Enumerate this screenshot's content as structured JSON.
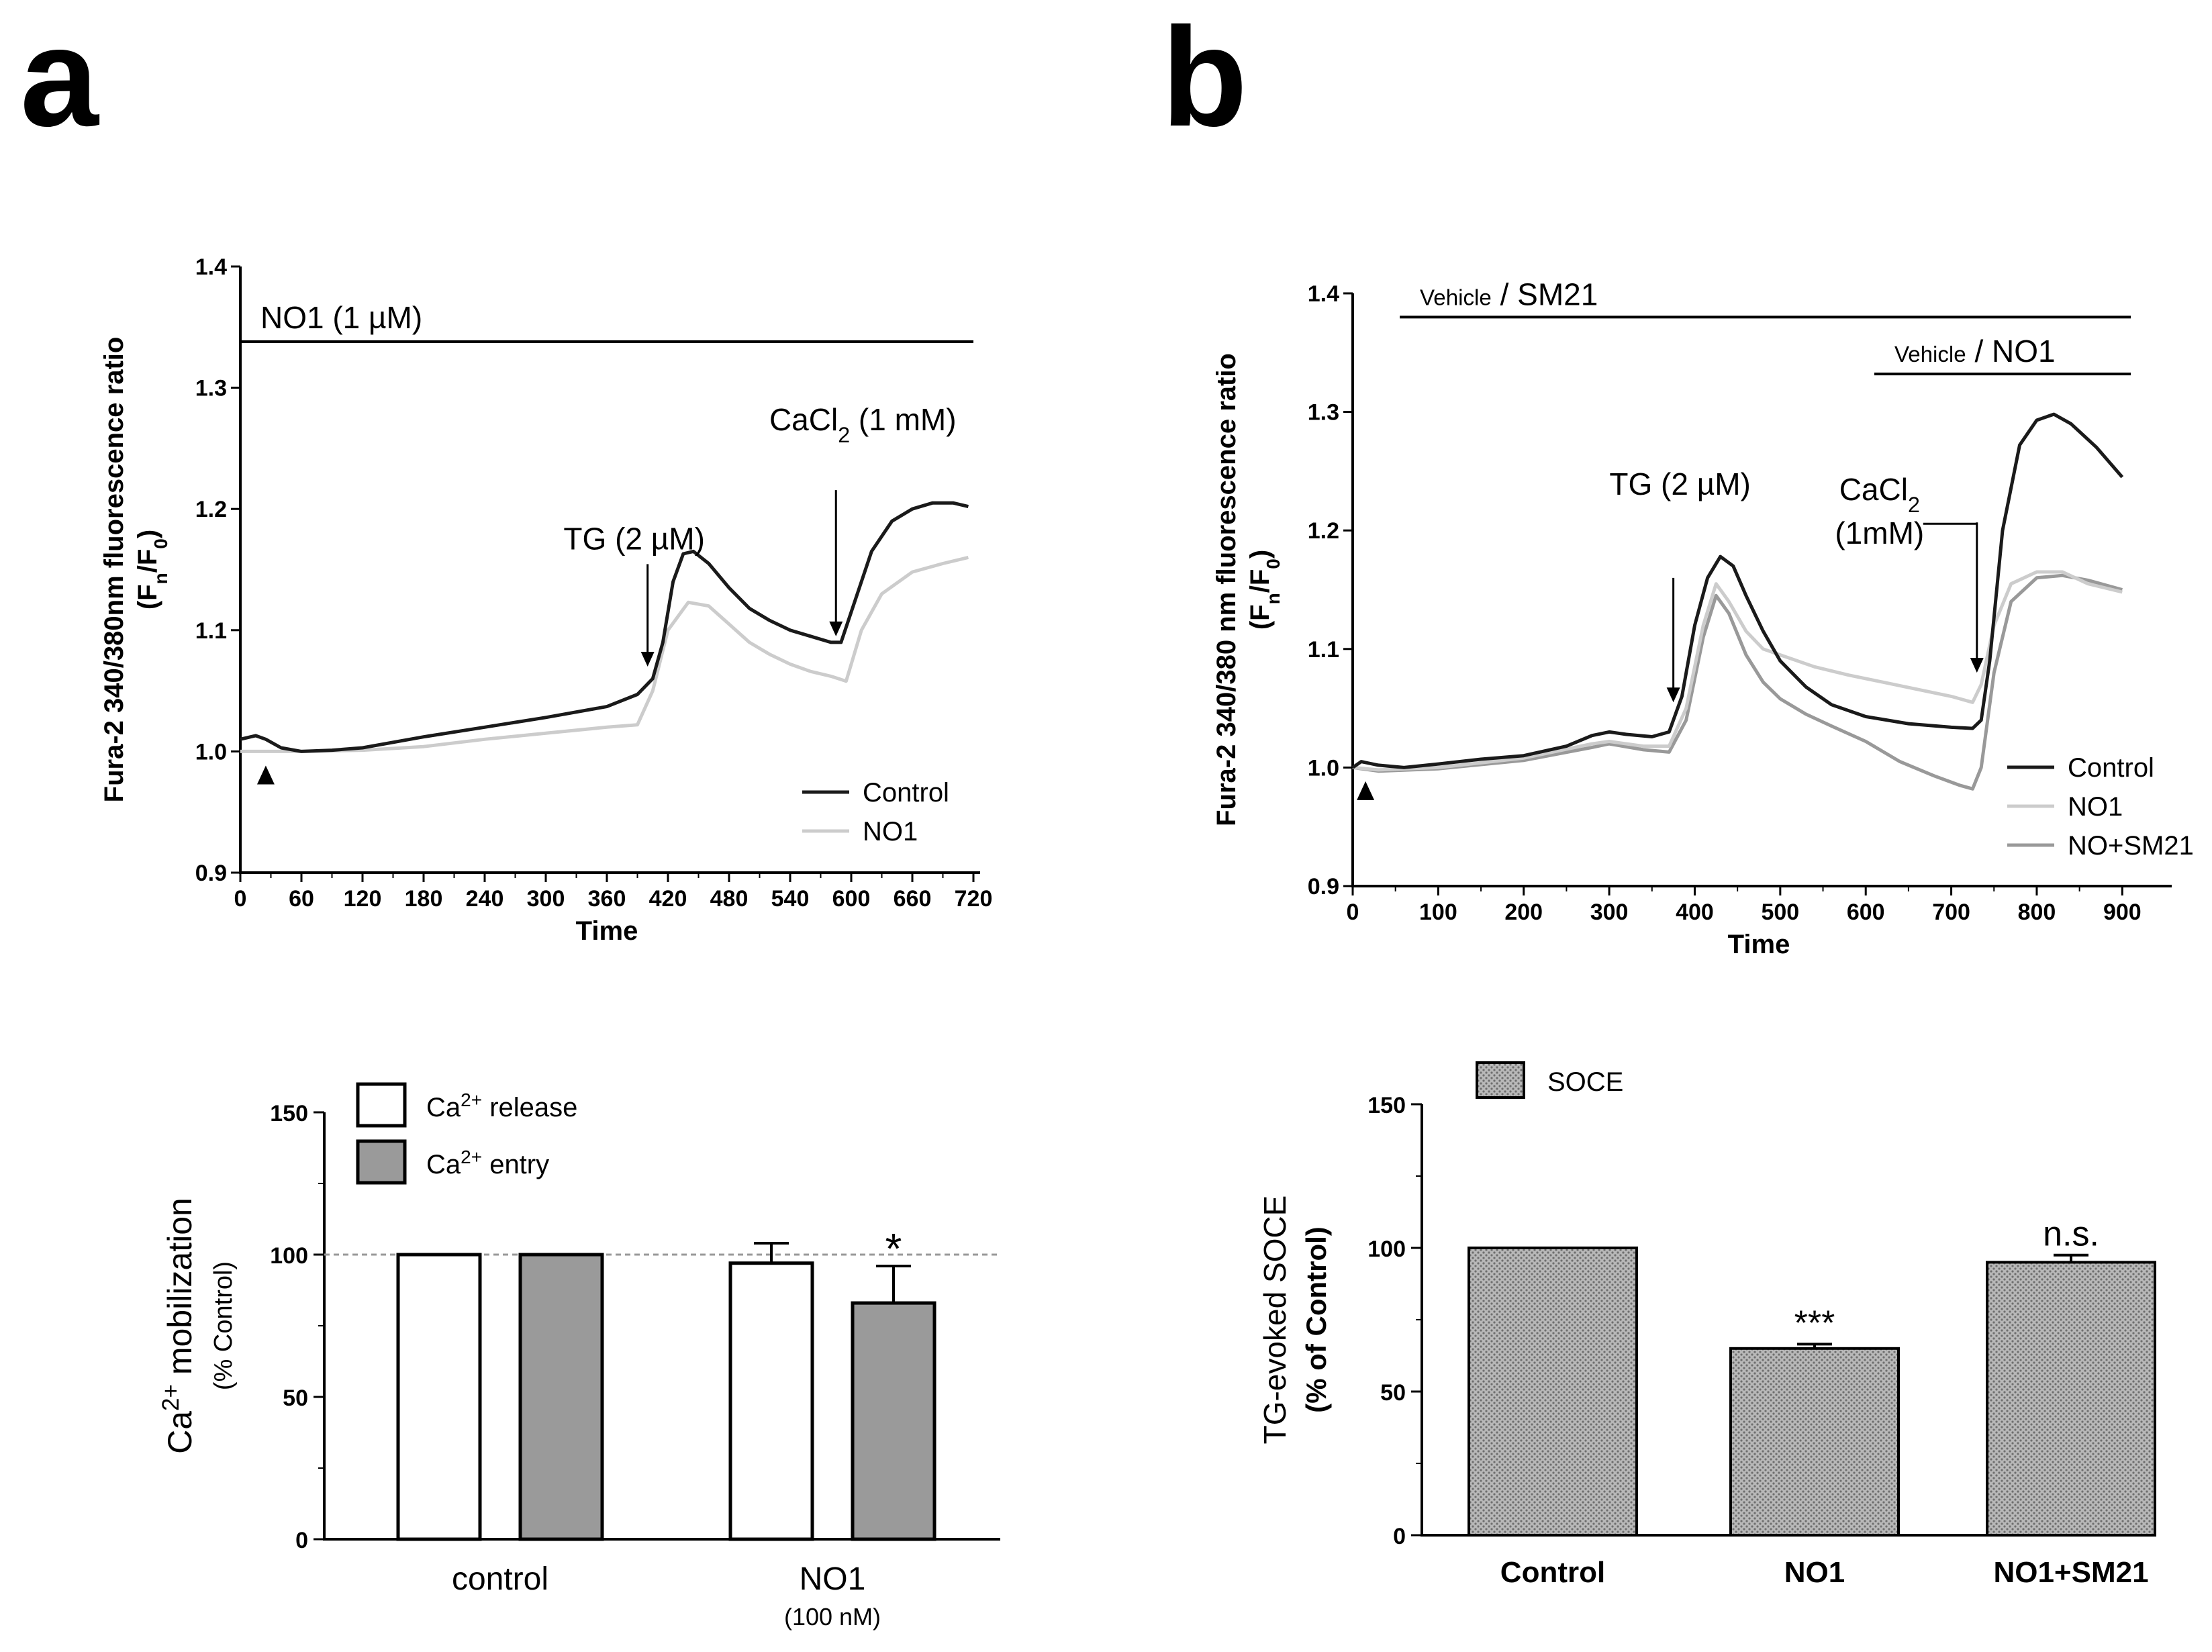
{
  "panels": {
    "a": {
      "letter": "a"
    },
    "b": {
      "letter": "b"
    }
  },
  "colors": {
    "control": "#1a1a1a",
    "no1": "#cccccc",
    "no_sm21": "#999999",
    "entry_fill": "#9a9a9a",
    "soce_fill": "#b8b8b8"
  },
  "chart_data": [
    {
      "id": "a-top",
      "type": "line",
      "xlabel": "Time",
      "ylabel_line1": "Fura-2  340/380nm fluorescence ratio",
      "ylabel_line2": "(F",
      "ylabel_sub1": "n",
      "ylabel_mid": "/F",
      "ylabel_sub2": "0",
      "ylabel_end": ")",
      "xlim": [
        0,
        720
      ],
      "ylim": [
        0.9,
        1.4
      ],
      "xticks": [
        "0",
        "60",
        "120",
        "180",
        "240",
        "300",
        "360",
        "420",
        "480",
        "540",
        "600",
        "660",
        "720"
      ],
      "yticks": [
        "0.9",
        "1.0",
        "1.1",
        "1.2",
        "1.3",
        "1.4"
      ],
      "treatment_bar": {
        "label": "NO1 (1 µM)",
        "x_start": 0,
        "x_end": 720,
        "y": 1.338
      },
      "annotations": [
        {
          "label": "TG (2 µM)",
          "x": 400,
          "y_from": 1.17,
          "y_to": 1.07
        },
        {
          "label": "CaCl",
          "sub": "2",
          "tail": " (1 mM)",
          "x": 585,
          "y_from": 1.21,
          "y_to": 1.095
        }
      ],
      "stim_marker_x": 25,
      "series": [
        {
          "name": "Control",
          "x": [
            0,
            15,
            25,
            40,
            60,
            90,
            120,
            180,
            240,
            300,
            360,
            390,
            405,
            415,
            425,
            435,
            445,
            460,
            480,
            500,
            520,
            540,
            560,
            580,
            590,
            600,
            620,
            640,
            660,
            680,
            700,
            715
          ],
          "y": [
            1.01,
            1.013,
            1.01,
            1.003,
            1.0,
            1.001,
            1.003,
            1.012,
            1.02,
            1.028,
            1.037,
            1.047,
            1.06,
            1.09,
            1.14,
            1.163,
            1.165,
            1.155,
            1.135,
            1.118,
            1.108,
            1.1,
            1.095,
            1.09,
            1.09,
            1.115,
            1.165,
            1.19,
            1.2,
            1.205,
            1.205,
            1.202
          ]
        },
        {
          "name": "NO1",
          "x": [
            0,
            30,
            60,
            120,
            180,
            240,
            300,
            360,
            390,
            405,
            420,
            440,
            460,
            480,
            500,
            520,
            540,
            560,
            580,
            595,
            610,
            630,
            660,
            690,
            715
          ],
          "y": [
            1.0,
            1.0,
            1.0,
            1.001,
            1.004,
            1.01,
            1.015,
            1.02,
            1.022,
            1.05,
            1.1,
            1.123,
            1.12,
            1.105,
            1.09,
            1.08,
            1.072,
            1.066,
            1.062,
            1.058,
            1.1,
            1.13,
            1.148,
            1.155,
            1.16
          ]
        }
      ]
    },
    {
      "id": "a-bottom",
      "type": "bar",
      "ylabel_main": "Ca",
      "ylabel_sup": "2+",
      "ylabel_rest": " mobilization",
      "ylabel_line2": "(% Control)",
      "ylim": [
        0,
        150
      ],
      "yticks": [
        "0",
        "50",
        "100",
        "150"
      ],
      "reference_line": 100,
      "categories": [
        "control",
        "NO1"
      ],
      "category_sub": [
        "",
        "(100 nM)"
      ],
      "series": [
        {
          "name": "release",
          "legend_prefix": "Ca",
          "legend_sup": "2+",
          "legend_suffix": " release",
          "values": [
            100,
            97
          ],
          "errors": [
            0,
            7
          ]
        },
        {
          "name": "entry",
          "legend_prefix": "Ca",
          "legend_sup": "2+",
          "legend_suffix": " entry",
          "values": [
            100,
            83
          ],
          "errors": [
            0,
            13
          ]
        }
      ],
      "significance": [
        {
          "category": 1,
          "series": 1,
          "label": "*"
        }
      ]
    },
    {
      "id": "b-top",
      "type": "line",
      "xlabel": "Time",
      "ylabel_line1": "Fura-2  340/380 nm fluorescence ratio",
      "ylabel_line2": "(F",
      "ylabel_sub1": "n",
      "ylabel_mid": "/F",
      "ylabel_sub2": "0",
      "ylabel_end": ")",
      "xlim": [
        0,
        950
      ],
      "ylim": [
        0.9,
        1.4
      ],
      "xticks": [
        "0",
        "100",
        "200",
        "300",
        "400",
        "500",
        "600",
        "700",
        "800",
        "900"
      ],
      "yticks": [
        "0.9",
        "1.0",
        "1.1",
        "1.2",
        "1.3",
        "1.4"
      ],
      "treatment_bars": [
        {
          "small": "Vehicle",
          "label": " / SM21",
          "x_start": 55,
          "x_end": 910,
          "y": 1.38
        },
        {
          "small": "Vehicle",
          "label": " / NO1",
          "x_start": 610,
          "x_end": 910,
          "y": 1.332
        }
      ],
      "annotations": [
        {
          "label": "TG (2 µM)",
          "x": 375,
          "y_from": 1.16,
          "y_to": 1.055
        },
        {
          "label": "CaCl",
          "sub": "2",
          "line2": "(1mM)",
          "x": 730,
          "y_from": 1.2,
          "y_to": 1.08
        }
      ],
      "stim_marker_x": 15,
      "series": [
        {
          "name": "Control",
          "x": [
            0,
            10,
            30,
            60,
            100,
            150,
            200,
            250,
            280,
            300,
            320,
            350,
            370,
            385,
            400,
            415,
            430,
            445,
            460,
            480,
            500,
            530,
            560,
            600,
            650,
            700,
            725,
            735,
            745,
            760,
            780,
            800,
            820,
            840,
            870,
            900
          ],
          "y": [
            1.0,
            1.005,
            1.002,
            1.0,
            1.003,
            1.007,
            1.01,
            1.018,
            1.027,
            1.03,
            1.028,
            1.026,
            1.03,
            1.06,
            1.12,
            1.16,
            1.178,
            1.17,
            1.145,
            1.115,
            1.09,
            1.068,
            1.053,
            1.043,
            1.037,
            1.034,
            1.033,
            1.04,
            1.09,
            1.2,
            1.272,
            1.293,
            1.298,
            1.29,
            1.27,
            1.245
          ]
        },
        {
          "name": "NO1",
          "x": [
            0,
            30,
            100,
            200,
            280,
            300,
            340,
            370,
            390,
            410,
            425,
            440,
            460,
            480,
            500,
            540,
            580,
            620,
            660,
            700,
            725,
            735,
            750,
            770,
            800,
            830,
            860,
            900
          ],
          "y": [
            1.0,
            0.998,
            1.0,
            1.008,
            1.02,
            1.022,
            1.018,
            1.018,
            1.05,
            1.12,
            1.155,
            1.14,
            1.115,
            1.1,
            1.095,
            1.085,
            1.078,
            1.072,
            1.066,
            1.06,
            1.055,
            1.07,
            1.12,
            1.155,
            1.165,
            1.165,
            1.155,
            1.148
          ]
        },
        {
          "name": "NO+SM21",
          "x": [
            0,
            30,
            100,
            200,
            280,
            300,
            340,
            370,
            390,
            410,
            425,
            440,
            460,
            480,
            500,
            530,
            560,
            600,
            640,
            680,
            710,
            725,
            735,
            750,
            770,
            800,
            830,
            860,
            900
          ],
          "y": [
            1.0,
            0.997,
            0.999,
            1.006,
            1.017,
            1.02,
            1.015,
            1.013,
            1.04,
            1.11,
            1.145,
            1.13,
            1.095,
            1.072,
            1.058,
            1.045,
            1.035,
            1.022,
            1.005,
            0.993,
            0.985,
            0.982,
            1.0,
            1.08,
            1.14,
            1.16,
            1.162,
            1.158,
            1.15
          ]
        }
      ]
    },
    {
      "id": "b-bottom",
      "type": "bar",
      "ylabel_line1": "TG-evoked SOCE",
      "ylabel_line2": "(% of Control)",
      "ylim": [
        0,
        150
      ],
      "yticks": [
        "0",
        "50",
        "100",
        "150"
      ],
      "legend": "SOCE",
      "categories": [
        "Control",
        "NO1",
        "NO1+SM21"
      ],
      "values": [
        100,
        65,
        95
      ],
      "errors": [
        0,
        1.5,
        2.5
      ],
      "significance": [
        "",
        "***",
        "n.s."
      ]
    }
  ]
}
